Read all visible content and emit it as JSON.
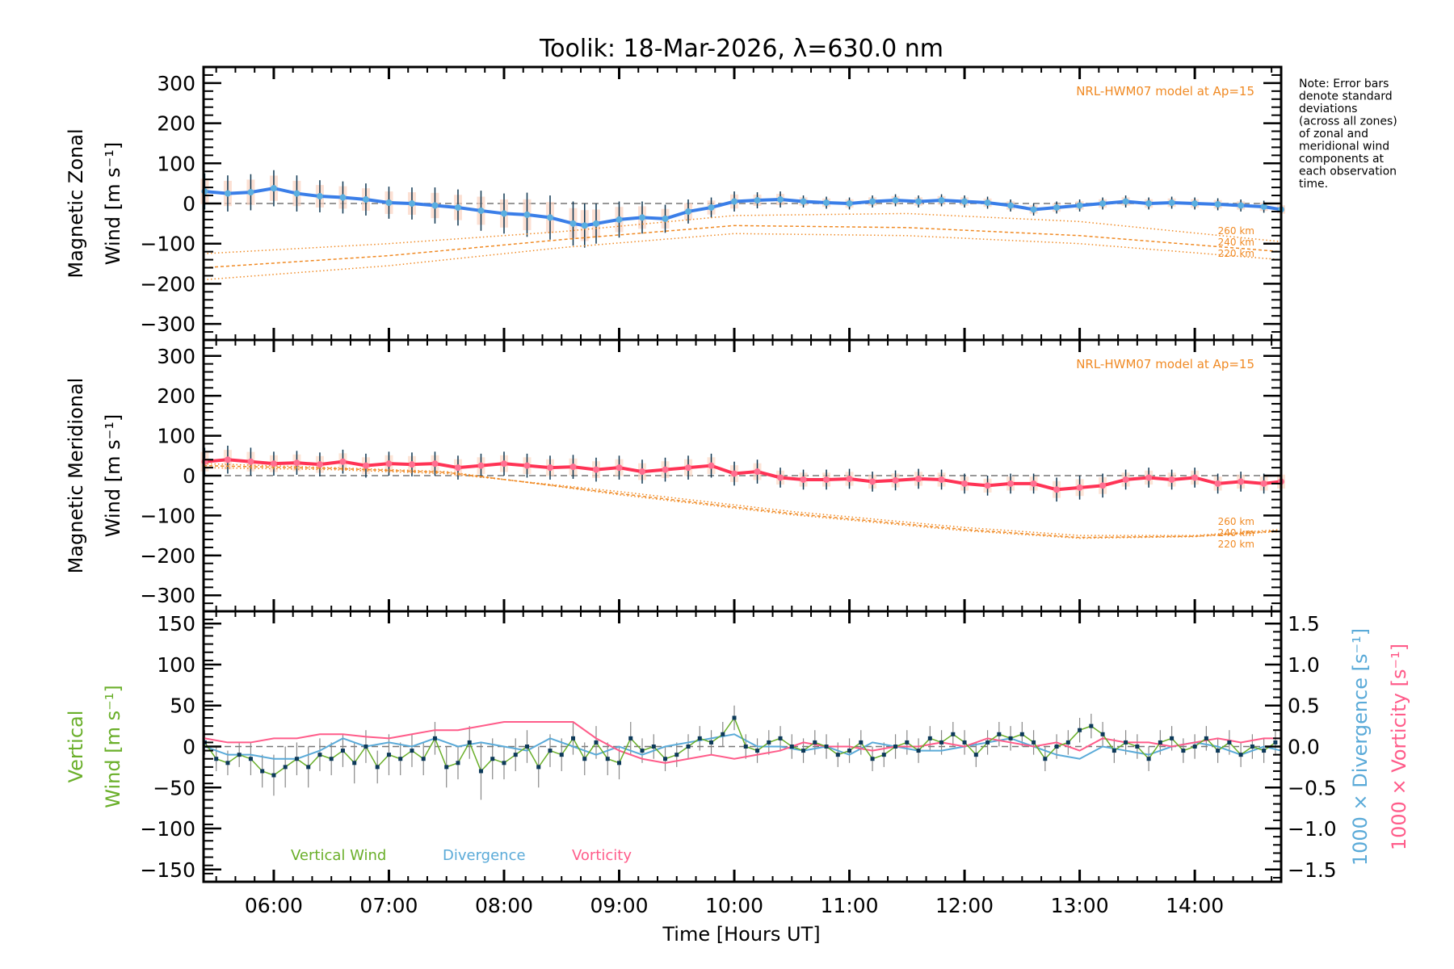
{
  "chart_data": {
    "type": "line",
    "title": "Toolik: 18-Mar-2026, λ=630.0 nm",
    "xlabel": "Time [Hours UT]",
    "x_range_hours": [
      5.39,
      14.75
    ],
    "x_ticks": [
      {
        "value": 6,
        "label": "06:00"
      },
      {
        "value": 7,
        "label": "07:00"
      },
      {
        "value": 8,
        "label": "08:00"
      },
      {
        "value": 9,
        "label": "09:00"
      },
      {
        "value": 10,
        "label": "10:00"
      },
      {
        "value": 11,
        "label": "11:00"
      },
      {
        "value": 12,
        "label": "12:00"
      },
      {
        "value": 13,
        "label": "13:00"
      },
      {
        "value": 14,
        "label": "14:00"
      }
    ],
    "note": [
      "Note: Error bars",
      "denote standard",
      "deviations",
      "(across all zones)",
      "of zonal and",
      "meridional wind",
      "components at",
      "each observation",
      "time."
    ],
    "panels": [
      {
        "id": "zonal",
        "ylabel_line1": "Magnetic Zonal",
        "ylabel_line2": "Wind [m s⁻¹]",
        "ylim": [
          -340,
          340
        ],
        "y_ticks": [
          300,
          200,
          100,
          0,
          -100,
          -200,
          -300
        ],
        "y_tick_labels": [
          "300",
          "200",
          "100",
          "0",
          "−100",
          "−200",
          "−300"
        ],
        "model_label": "NRL-HWM07 model at Ap=15",
        "line_color": "#3a7ee8",
        "marker_color": "#5aaee0",
        "series_x": [
          5.4,
          5.6,
          5.8,
          6.0,
          6.2,
          6.4,
          6.6,
          6.8,
          7.0,
          7.2,
          7.4,
          7.6,
          7.8,
          8.0,
          8.2,
          8.4,
          8.6,
          8.7,
          8.8,
          9.0,
          9.2,
          9.4,
          9.6,
          9.8,
          10.0,
          10.2,
          10.4,
          10.6,
          10.8,
          11.0,
          11.2,
          11.4,
          11.6,
          11.8,
          12.0,
          12.2,
          12.4,
          12.6,
          12.8,
          13.0,
          13.2,
          13.4,
          13.6,
          13.8,
          14.0,
          14.2,
          14.4,
          14.6,
          14.75
        ],
        "series_y": [
          30,
          25,
          28,
          38,
          25,
          18,
          15,
          10,
          2,
          0,
          -5,
          -10,
          -18,
          -25,
          -28,
          -35,
          -50,
          -55,
          -50,
          -40,
          -35,
          -38,
          -20,
          -10,
          5,
          8,
          10,
          5,
          2,
          0,
          5,
          8,
          5,
          8,
          5,
          2,
          -5,
          -15,
          -10,
          -5,
          0,
          5,
          0,
          2,
          0,
          -2,
          -5,
          -8,
          -15
        ],
        "error_std": [
          45,
          45,
          45,
          45,
          45,
          40,
          40,
          40,
          40,
          40,
          45,
          45,
          50,
          50,
          55,
          55,
          55,
          55,
          50,
          45,
          40,
          35,
          30,
          25,
          25,
          20,
          20,
          15,
          15,
          15,
          15,
          15,
          15,
          15,
          15,
          15,
          15,
          15,
          15,
          15,
          15,
          15,
          15,
          15,
          15,
          15,
          15,
          15,
          15
        ],
        "model_lines": [
          {
            "label": "260 km",
            "x": [
              5.39,
              7.0,
              8.5,
              10.0,
              11.5,
              13.0,
              14.75
            ],
            "y": [
              -125,
              -100,
              -70,
              -30,
              -25,
              -45,
              -95
            ]
          },
          {
            "label": "240 km",
            "x": [
              5.39,
              7.0,
              8.5,
              10.0,
              11.5,
              13.0,
              14.75
            ],
            "y": [
              -160,
              -130,
              -90,
              -55,
              -60,
              -80,
              -120
            ]
          },
          {
            "label": "220 km",
            "x": [
              5.39,
              7.0,
              8.5,
              10.0,
              11.5,
              13.0,
              14.75
            ],
            "y": [
              -190,
              -155,
              -110,
              -75,
              -80,
              -100,
              -140
            ]
          }
        ]
      },
      {
        "id": "meridional",
        "ylabel_line1": "Magnetic Meridional",
        "ylabel_line2": "Wind [m s⁻¹]",
        "ylim": [
          -340,
          340
        ],
        "y_ticks": [
          300,
          200,
          100,
          0,
          -100,
          -200,
          -300
        ],
        "y_tick_labels": [
          "300",
          "200",
          "100",
          "0",
          "−100",
          "−200",
          "−300"
        ],
        "model_label": "NRL-HWM07 model at Ap=15",
        "line_color": "#ff3355",
        "marker_color": "#ff6f90",
        "series_x": [
          5.4,
          5.6,
          5.8,
          6.0,
          6.2,
          6.4,
          6.6,
          6.8,
          7.0,
          7.2,
          7.4,
          7.6,
          7.8,
          8.0,
          8.2,
          8.4,
          8.6,
          8.8,
          9.0,
          9.2,
          9.4,
          9.6,
          9.8,
          10.0,
          10.2,
          10.4,
          10.6,
          10.8,
          11.0,
          11.2,
          11.4,
          11.6,
          11.8,
          12.0,
          12.2,
          12.4,
          12.6,
          12.8,
          13.0,
          13.2,
          13.4,
          13.6,
          13.8,
          14.0,
          14.2,
          14.4,
          14.6,
          14.75
        ],
        "series_y": [
          35,
          40,
          35,
          30,
          32,
          28,
          35,
          25,
          30,
          28,
          30,
          20,
          25,
          30,
          25,
          20,
          22,
          15,
          20,
          10,
          15,
          20,
          25,
          5,
          10,
          -5,
          -10,
          -10,
          -8,
          -15,
          -12,
          -8,
          -10,
          -20,
          -25,
          -20,
          -20,
          -35,
          -30,
          -25,
          -10,
          -5,
          -10,
          -5,
          -20,
          -15,
          -20,
          -15
        ],
        "error_std": [
          35,
          35,
          35,
          30,
          30,
          30,
          30,
          30,
          30,
          30,
          30,
          30,
          30,
          30,
          30,
          30,
          30,
          30,
          30,
          30,
          30,
          30,
          30,
          30,
          30,
          25,
          25,
          25,
          25,
          25,
          25,
          25,
          25,
          25,
          25,
          25,
          25,
          30,
          30,
          30,
          25,
          25,
          25,
          25,
          25,
          25,
          25,
          25
        ],
        "model_lines": [
          {
            "label": "260 km",
            "x": [
              5.39,
              6.5,
              7.5,
              9.0,
              10.5,
              12.0,
              13.0,
              14.0,
              14.75
            ],
            "y": [
              20,
              15,
              5,
              -40,
              -90,
              -130,
              -150,
              -150,
              -135
            ]
          },
          {
            "label": "240 km",
            "x": [
              5.39,
              6.5,
              7.5,
              9.0,
              10.5,
              12.0,
              13.0,
              14.0,
              14.75
            ],
            "y": [
              25,
              18,
              8,
              -45,
              -95,
              -135,
              -155,
              -152,
              -138
            ]
          },
          {
            "label": "220 km",
            "x": [
              5.39,
              6.5,
              7.5,
              9.0,
              10.5,
              12.0,
              13.0,
              14.0,
              14.75
            ],
            "y": [
              30,
              20,
              10,
              -48,
              -98,
              -138,
              -157,
              -153,
              -140
            ]
          }
        ]
      },
      {
        "id": "vertical",
        "ylabel_line1": "Vertical",
        "ylabel_line2": "Wind [m s⁻¹]",
        "ylabel_color": "#6aaf2a",
        "ylim": [
          -165,
          165
        ],
        "y_ticks": [
          150,
          100,
          50,
          0,
          -50,
          -100,
          -150
        ],
        "y_tick_labels": [
          "150",
          "100",
          "50",
          "0",
          "−50",
          "−100",
          "−150"
        ],
        "y2lim": [
          -1.65,
          1.65
        ],
        "y2_ticks": [
          1.5,
          1.0,
          0.5,
          0.0,
          -0.5,
          -1.0,
          -1.5
        ],
        "y2_tick_labels": [
          "1.5",
          "1.0",
          "0.5",
          "0.0",
          "−0.5",
          "−1.0",
          "−1.5"
        ],
        "y2_label_divergence": "1000 × Divergence [s⁻¹]",
        "y2_label_vorticity": "1000 × Vorticity [s⁻¹]",
        "legend": [
          {
            "label": "Vertical Wind",
            "color": "#6aaf2a"
          },
          {
            "label": "Divergence",
            "color": "#5aaad8"
          },
          {
            "label": "Vorticity",
            "color": "#ff5c8a"
          }
        ],
        "vertical_wind": {
          "x": [
            5.4,
            5.5,
            5.6,
            5.7,
            5.8,
            5.9,
            6.0,
            6.1,
            6.2,
            6.3,
            6.4,
            6.5,
            6.6,
            6.7,
            6.8,
            6.9,
            7.0,
            7.1,
            7.2,
            7.3,
            7.4,
            7.5,
            7.6,
            7.7,
            7.8,
            7.9,
            8.0,
            8.1,
            8.2,
            8.3,
            8.4,
            8.5,
            8.6,
            8.7,
            8.8,
            8.9,
            9.0,
            9.1,
            9.2,
            9.3,
            9.4,
            9.5,
            9.6,
            9.7,
            9.8,
            9.9,
            10.0,
            10.1,
            10.2,
            10.3,
            10.4,
            10.5,
            10.6,
            10.7,
            10.8,
            10.9,
            11.0,
            11.1,
            11.2,
            11.3,
            11.4,
            11.5,
            11.6,
            11.7,
            11.8,
            11.9,
            12.0,
            12.1,
            12.2,
            12.3,
            12.4,
            12.5,
            12.6,
            12.7,
            12.8,
            12.9,
            13.0,
            13.1,
            13.2,
            13.3,
            13.4,
            13.5,
            13.6,
            13.7,
            13.8,
            13.9,
            14.0,
            14.1,
            14.2,
            14.3,
            14.4,
            14.5,
            14.6,
            14.7
          ],
          "y": [
            5,
            -15,
            -20,
            -10,
            -15,
            -30,
            -35,
            -25,
            -15,
            -25,
            -10,
            -15,
            -5,
            -20,
            0,
            -25,
            -10,
            -15,
            -5,
            -15,
            10,
            -25,
            -20,
            5,
            -30,
            -15,
            -20,
            -10,
            0,
            -25,
            -5,
            -10,
            10,
            -15,
            5,
            -15,
            -20,
            10,
            -5,
            0,
            -15,
            -10,
            0,
            10,
            5,
            15,
            35,
            0,
            -5,
            5,
            10,
            0,
            -5,
            5,
            0,
            -10,
            -5,
            5,
            -15,
            -10,
            0,
            5,
            -5,
            10,
            5,
            15,
            5,
            -10,
            5,
            15,
            10,
            15,
            5,
            -15,
            0,
            5,
            20,
            25,
            15,
            -5,
            5,
            0,
            -15,
            5,
            10,
            -5,
            0,
            10,
            -5,
            5,
            -10,
            0,
            -5,
            5
          ],
          "err": [
            15,
            15,
            15,
            15,
            20,
            20,
            25,
            25,
            20,
            25,
            20,
            20,
            20,
            25,
            20,
            20,
            25,
            20,
            20,
            20,
            20,
            25,
            20,
            20,
            35,
            25,
            20,
            20,
            20,
            25,
            20,
            20,
            20,
            20,
            20,
            20,
            20,
            20,
            15,
            15,
            15,
            15,
            15,
            15,
            15,
            15,
            15,
            15,
            15,
            15,
            15,
            15,
            15,
            15,
            15,
            15,
            15,
            15,
            15,
            15,
            15,
            15,
            15,
            15,
            15,
            15,
            15,
            15,
            15,
            15,
            15,
            15,
            15,
            15,
            15,
            15,
            15,
            15,
            15,
            15,
            15,
            15,
            15,
            15,
            15,
            15,
            15,
            15,
            15,
            15,
            15,
            15,
            15,
            15
          ]
        },
        "divergence": {
          "x": [
            5.4,
            5.6,
            5.8,
            6.0,
            6.2,
            6.4,
            6.6,
            6.8,
            7.0,
            7.2,
            7.4,
            7.6,
            7.8,
            8.0,
            8.2,
            8.4,
            8.6,
            8.8,
            9.0,
            9.2,
            9.4,
            9.6,
            9.8,
            10.0,
            10.2,
            10.4,
            10.6,
            10.8,
            11.0,
            11.2,
            11.4,
            11.6,
            11.8,
            12.0,
            12.2,
            12.4,
            12.6,
            12.8,
            13.0,
            13.2,
            13.4,
            13.6,
            13.8,
            14.0,
            14.2,
            14.4,
            14.6,
            14.75
          ],
          "y": [
            0.0,
            -0.1,
            -0.1,
            -0.15,
            -0.15,
            -0.05,
            0.1,
            0.0,
            0.05,
            0.0,
            0.1,
            0.0,
            0.05,
            0.0,
            -0.05,
            0.1,
            0.0,
            -0.1,
            0.0,
            -0.1,
            0.0,
            0.05,
            0.1,
            0.15,
            0.0,
            0.0,
            -0.05,
            0.0,
            -0.1,
            0.05,
            0.0,
            -0.05,
            -0.05,
            0.0,
            0.05,
            0.1,
            0.0,
            -0.1,
            -0.15,
            0.0,
            -0.05,
            -0.1,
            0.0,
            0.05,
            0.0,
            -0.1,
            0.0,
            -0.05
          ]
        },
        "vorticity": {
          "x": [
            5.4,
            5.6,
            5.8,
            6.0,
            6.2,
            6.4,
            6.6,
            6.8,
            7.0,
            7.2,
            7.4,
            7.6,
            7.8,
            8.0,
            8.2,
            8.4,
            8.6,
            8.8,
            9.0,
            9.2,
            9.4,
            9.6,
            9.8,
            10.0,
            10.2,
            10.4,
            10.6,
            10.8,
            11.0,
            11.2,
            11.4,
            11.6,
            11.8,
            12.0,
            12.2,
            12.4,
            12.6,
            12.8,
            13.0,
            13.2,
            13.4,
            13.6,
            13.8,
            14.0,
            14.2,
            14.4,
            14.6,
            14.75
          ],
          "y": [
            0.1,
            0.05,
            0.05,
            0.1,
            0.1,
            0.15,
            0.15,
            0.12,
            0.1,
            0.15,
            0.2,
            0.2,
            0.25,
            0.3,
            0.3,
            0.3,
            0.3,
            0.1,
            -0.05,
            -0.15,
            -0.2,
            -0.15,
            -0.1,
            -0.15,
            -0.1,
            -0.05,
            0.05,
            0.0,
            0.0,
            -0.05,
            0.0,
            0.0,
            0.05,
            0.0,
            0.1,
            0.05,
            0.0,
            0.05,
            -0.05,
            0.1,
            0.05,
            0.05,
            0.0,
            0.05,
            0.1,
            0.05,
            0.1,
            0.1
          ]
        }
      }
    ]
  }
}
